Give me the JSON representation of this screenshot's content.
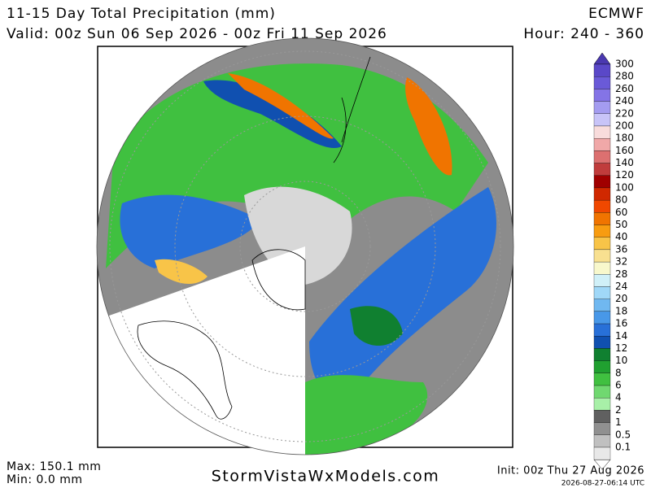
{
  "header": {
    "title": "11-15 Day Total Precipitation (mm)",
    "model": "ECMWF",
    "valid": "Valid: 00z Sun 06 Sep 2026 - 00z Fri 11 Sep 2026",
    "hour": "Hour: 240 - 360"
  },
  "footer": {
    "max": "Max: 150.1 mm",
    "min": "Min: 0.0 mm",
    "site": "StormVistaWxModels.com",
    "init": "Init: 00z Thu 27 Aug 2026",
    "timestamp": "2026-08-27-06:14 UTC"
  },
  "legend": {
    "top_color": "#4a38b0",
    "bottom_color": "#ffffff",
    "items": [
      {
        "label": "300",
        "color": "#5a48c8"
      },
      {
        "label": "280",
        "color": "#6a5ad8"
      },
      {
        "label": "260",
        "color": "#8474e6"
      },
      {
        "label": "240",
        "color": "#a49cf0"
      },
      {
        "label": "220",
        "color": "#c8c4f8"
      },
      {
        "label": "200",
        "color": "#f8dcdc"
      },
      {
        "label": "180",
        "color": "#f0a8a8"
      },
      {
        "label": "160",
        "color": "#dc7070"
      },
      {
        "label": "140",
        "color": "#c03c3c"
      },
      {
        "label": "120",
        "color": "#a00000"
      },
      {
        "label": "100",
        "color": "#d02800"
      },
      {
        "label": "80",
        "color": "#f04800"
      },
      {
        "label": "60",
        "color": "#f07400"
      },
      {
        "label": "50",
        "color": "#f89c10"
      },
      {
        "label": "40",
        "color": "#f8c448"
      },
      {
        "label": "36",
        "color": "#f8e090"
      },
      {
        "label": "32",
        "color": "#f8f8cc"
      },
      {
        "label": "28",
        "color": "#d0f0f8"
      },
      {
        "label": "24",
        "color": "#a0d8f8"
      },
      {
        "label": "20",
        "color": "#70b8f0"
      },
      {
        "label": "18",
        "color": "#4898e8"
      },
      {
        "label": "16",
        "color": "#2870d8"
      },
      {
        "label": "14",
        "color": "#1050b0"
      },
      {
        "label": "12",
        "color": "#108030"
      },
      {
        "label": "10",
        "color": "#20a030"
      },
      {
        "label": "8",
        "color": "#40c040"
      },
      {
        "label": "6",
        "color": "#70d870"
      },
      {
        "label": "4",
        "color": "#a8f0a8"
      },
      {
        "label": "2",
        "color": "#606060"
      },
      {
        "label": "1",
        "color": "#909090"
      },
      {
        "label": "0.5",
        "color": "#c0c0c0"
      },
      {
        "label": "0.1",
        "color": "#e8e8e8"
      }
    ]
  }
}
